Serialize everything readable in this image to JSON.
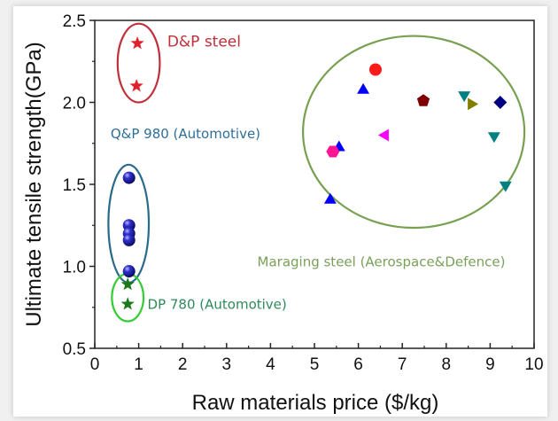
{
  "chart_data": {
    "type": "scatter",
    "title": "",
    "xlabel": "Raw materials price ($/kg)",
    "ylabel": "Ultimate tensile strength(GPa)",
    "xlim": [
      0,
      10
    ],
    "ylim": [
      0.5,
      2.5
    ],
    "x_ticks": [
      0,
      1,
      2,
      3,
      4,
      5,
      6,
      7,
      8,
      9,
      10
    ],
    "y_ticks": [
      "0.5",
      "1.0",
      "1.5",
      "2.0",
      "2.5"
    ],
    "x_ticks_values": [
      0,
      1,
      2,
      3,
      4,
      5,
      6,
      7,
      8,
      9,
      10
    ],
    "y_ticks_values": [
      0.5,
      1.0,
      1.5,
      2.0,
      2.5
    ],
    "grid": false,
    "groups": [
      {
        "name": "D&P steel",
        "label_color": "#c0303a",
        "ellipse_color": "#c0303a",
        "ellipse": {
          "cx": 1.0,
          "cy": 2.24,
          "rx": 0.48,
          "ry": 0.24
        },
        "label_pos": {
          "x": 1.65,
          "y": 2.34
        },
        "points": [
          {
            "x": 0.97,
            "y": 2.36,
            "marker": "star",
            "color": "#e0202a"
          },
          {
            "x": 0.95,
            "y": 2.1,
            "marker": "star",
            "color": "#e0202a"
          }
        ]
      },
      {
        "name": "Q&P 980 (Automotive)",
        "label_color": "#2e6f9a",
        "ellipse_color": "#2a6a8a",
        "ellipse": {
          "cx": 0.77,
          "cy": 1.26,
          "rx": 0.46,
          "ry": 0.36
        },
        "label_pos": {
          "x": 0.36,
          "y": 1.78
        },
        "points": [
          {
            "x": 0.78,
            "y": 1.54,
            "marker": "ball",
            "color": "#1a1aa0"
          },
          {
            "x": 0.78,
            "y": 1.25,
            "marker": "ball",
            "color": "#1a1aa0"
          },
          {
            "x": 0.78,
            "y": 1.2,
            "marker": "ball",
            "color": "#1a1aa0"
          },
          {
            "x": 0.78,
            "y": 1.16,
            "marker": "ball",
            "color": "#1a1aa0"
          },
          {
            "x": 0.78,
            "y": 0.97,
            "marker": "ball",
            "color": "#1a1aa0"
          }
        ]
      },
      {
        "name": "DP 780 (Automotive)",
        "label_color": "#2e8a5a",
        "ellipse_color": "#33cc33",
        "ellipse": {
          "cx": 0.75,
          "cy": 0.81,
          "rx": 0.36,
          "ry": 0.145
        },
        "label_pos": {
          "x": 1.2,
          "y": 0.74
        },
        "points": [
          {
            "x": 0.75,
            "y": 0.89,
            "marker": "star",
            "color": "#1a7a1a"
          },
          {
            "x": 0.75,
            "y": 0.77,
            "marker": "star",
            "color": "#1a7a1a"
          }
        ]
      },
      {
        "name": "Maraging steel (Aerospace&Defence)",
        "label_color": "#7aa05a",
        "ellipse_color": "#78a050",
        "ellipse": {
          "cx": 7.26,
          "cy": 1.82,
          "rx": 2.52,
          "ry": 0.585
        },
        "label_pos": {
          "x": 3.7,
          "y": 1.0
        },
        "points": [
          {
            "x": 6.39,
            "y": 2.2,
            "marker": "circle",
            "color": "#ff1a1a"
          },
          {
            "x": 6.11,
            "y": 2.08,
            "marker": "triangle-up",
            "color": "#0000ff"
          },
          {
            "x": 7.48,
            "y": 2.01,
            "marker": "pentagon",
            "color": "#800000"
          },
          {
            "x": 8.41,
            "y": 2.04,
            "marker": "triangle-down",
            "color": "#008080"
          },
          {
            "x": 8.57,
            "y": 1.99,
            "marker": "triangle-right",
            "color": "#808000"
          },
          {
            "x": 9.23,
            "y": 2.0,
            "marker": "diamond",
            "color": "#000080"
          },
          {
            "x": 6.61,
            "y": 1.8,
            "marker": "triangle-left",
            "color": "#ff00ff"
          },
          {
            "x": 9.09,
            "y": 1.79,
            "marker": "triangle-down",
            "color": "#008080"
          },
          {
            "x": 5.56,
            "y": 1.73,
            "marker": "triangle-up",
            "color": "#0000ff"
          },
          {
            "x": 5.42,
            "y": 1.7,
            "marker": "hexagon",
            "color": "#ff1493"
          },
          {
            "x": 9.35,
            "y": 1.49,
            "marker": "triangle-down",
            "color": "#008080"
          },
          {
            "x": 5.36,
            "y": 1.41,
            "marker": "triangle-up",
            "color": "#0000ff"
          }
        ]
      }
    ]
  }
}
